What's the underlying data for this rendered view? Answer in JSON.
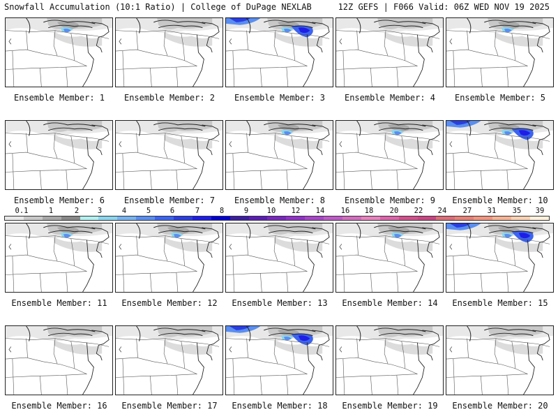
{
  "header": {
    "left": "Snowfall Accumulation (10:1 Ratio) | College of DuPage NEXLAB",
    "right": "12Z GEFS | F066 Valid: 06Z WED NOV 19 2025"
  },
  "colorbar": {
    "labels": [
      "0.1",
      "1",
      "2",
      "3",
      "4",
      "5",
      "6",
      "7",
      "8",
      "9",
      "10",
      "12",
      "14",
      "16",
      "18",
      "20",
      "22",
      "24",
      "27",
      "31",
      "35",
      "39"
    ],
    "colors": [
      "#e8e8e8",
      "#c8c8c8",
      "#a8a8a8",
      "#888888",
      "#b4f0f0",
      "#8cd6ee",
      "#78b4f0",
      "#5a8ef0",
      "#3c64f0",
      "#2a3ee0",
      "#1e1ee6",
      "#0000d2",
      "#3c1ea0",
      "#5a1eb4",
      "#7828be",
      "#9032c8",
      "#a846c8",
      "#be5ac8",
      "#d26ebe",
      "#e882be",
      "#dc64aa",
      "#d2508c",
      "#c84682",
      "#dc6e78",
      "#e68278",
      "#f09682",
      "#f5b496",
      "#fad2b4",
      "#fff0dc"
    ]
  },
  "members": [
    {
      "label": "Ensemble Member: 1",
      "snow_level": 2
    },
    {
      "label": "Ensemble Member: 2",
      "snow_level": 1
    },
    {
      "label": "Ensemble Member: 3",
      "snow_level": 3
    },
    {
      "label": "Ensemble Member: 4",
      "snow_level": 1
    },
    {
      "label": "Ensemble Member: 5",
      "snow_level": 2
    },
    {
      "label": "Ensemble Member: 6",
      "snow_level": 1
    },
    {
      "label": "Ensemble Member: 7",
      "snow_level": 1
    },
    {
      "label": "Ensemble Member: 8",
      "snow_level": 2
    },
    {
      "label": "Ensemble Member: 9",
      "snow_level": 2
    },
    {
      "label": "Ensemble Member: 10",
      "snow_level": 3
    },
    {
      "label": "Ensemble Member: 11",
      "snow_level": 2
    },
    {
      "label": "Ensemble Member: 12",
      "snow_level": 2
    },
    {
      "label": "Ensemble Member: 13",
      "snow_level": 1
    },
    {
      "label": "Ensemble Member: 14",
      "snow_level": 2
    },
    {
      "label": "Ensemble Member: 15",
      "snow_level": 3
    },
    {
      "label": "Ensemble Member: 16",
      "snow_level": 1
    },
    {
      "label": "Ensemble Member: 17",
      "snow_level": 1
    },
    {
      "label": "Ensemble Member: 18",
      "snow_level": 3
    },
    {
      "label": "Ensemble Member: 19",
      "snow_level": 1
    },
    {
      "label": "Ensemble Member: 20",
      "snow_level": 1
    }
  ]
}
